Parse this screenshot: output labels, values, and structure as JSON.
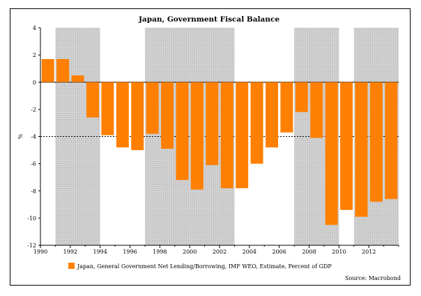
{
  "chart_data": {
    "type": "bar",
    "title": "Japan, Government Fiscal Balance",
    "ylabel": "%",
    "xlabel": "",
    "ylim": [
      -12,
      4
    ],
    "yticks": [
      4,
      2,
      0,
      -2,
      -4,
      -6,
      -8,
      -10,
      -12
    ],
    "xrange": [
      1990,
      2014
    ],
    "xticks": [
      1990,
      1992,
      1994,
      1996,
      1998,
      2000,
      2002,
      2004,
      2006,
      2008,
      2010,
      2012
    ],
    "reference_line": -4,
    "shaded_periods": [
      [
        1991,
        1994
      ],
      [
        1997,
        2003
      ],
      [
        2007,
        2010
      ],
      [
        2011,
        2014
      ]
    ],
    "series": [
      {
        "name": "Japan, General Government Net Lending/Borrowing, IMF WEO, Estimate, Percent of GDP",
        "color": "#ff8000",
        "x": [
          1990,
          1991,
          1992,
          1993,
          1994,
          1995,
          1996,
          1997,
          1998,
          1999,
          2000,
          2001,
          2002,
          2003,
          2004,
          2005,
          2006,
          2007,
          2008,
          2009,
          2010,
          2011,
          2012,
          2013
        ],
        "values": [
          1.7,
          1.7,
          0.5,
          -2.6,
          -3.9,
          -4.8,
          -5.0,
          -3.8,
          -4.9,
          -7.2,
          -7.9,
          -6.1,
          -7.8,
          -7.8,
          -6.0,
          -4.8,
          -3.7,
          -2.2,
          -4.1,
          -10.5,
          -9.4,
          -9.9,
          -8.8,
          -8.6
        ]
      }
    ],
    "legend": [
      {
        "label": "Japan, General Government Net Lending/Borrowing, IMF WEO, Estimate, Percent of GDP",
        "color": "#ff8000"
      }
    ],
    "source": "Source: Macrobond"
  }
}
